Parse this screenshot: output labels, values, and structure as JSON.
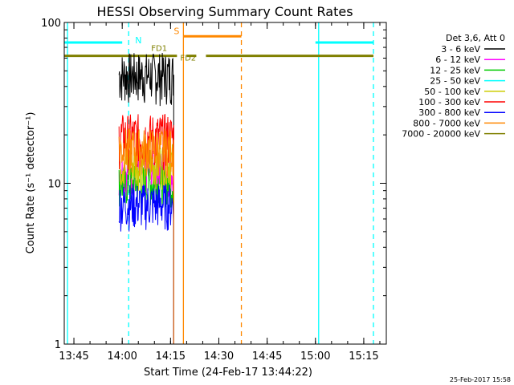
{
  "chart_data": {
    "type": "line",
    "title": "HESSI Observing Summary Count Rates",
    "xlabel": "Start Time (24-Feb-17 13:44:22)",
    "ylabel": "Count Rate (s⁻¹ detector⁻¹)",
    "y_scale": "log",
    "ylim": [
      1,
      100
    ],
    "xlim": [
      "13:42",
      "15:22"
    ],
    "x_ticks": [
      "13:45",
      "14:00",
      "14:15",
      "14:30",
      "14:45",
      "15:00",
      "15:15"
    ],
    "y_ticks": [
      "1",
      "10",
      "100"
    ],
    "date_stamp": "25-Feb-2017 15:58",
    "legend": {
      "title": "Det 3,6, Att 0",
      "position": "right",
      "entries": [
        {
          "label": "3 - 6 keV",
          "color": "#000000"
        },
        {
          "label": "6 - 12 keV",
          "color": "#ff00ff"
        },
        {
          "label": "12 - 25 keV",
          "color": "#00cc00"
        },
        {
          "label": "25 - 50 keV",
          "color": "#00ffff"
        },
        {
          "label": "50 - 100 keV",
          "color": "#cccc00"
        },
        {
          "label": "100 - 300 keV",
          "color": "#ff0000"
        },
        {
          "label": "300 - 800 keV",
          "color": "#0000ff"
        },
        {
          "label": "800 - 7000 keV",
          "color": "#ff8800"
        },
        {
          "label": "7000 - 20000 keV",
          "color": "#808000"
        }
      ]
    },
    "series": [
      {
        "name": "3 - 6 keV",
        "color": "#000000",
        "t_start": "13:59",
        "t_end": "14:16",
        "level": 50,
        "low": 30,
        "high": 65
      },
      {
        "name": "6 - 12 keV",
        "color": "#ff00ff",
        "t_start": "13:59",
        "t_end": "14:16",
        "level": 12,
        "low": 8,
        "high": 16
      },
      {
        "name": "12 - 25 keV",
        "color": "#00cc00",
        "t_start": "13:59",
        "t_end": "14:16",
        "level": 10,
        "low": 7,
        "high": 13
      },
      {
        "name": "50 - 100 keV",
        "color": "#cccc00",
        "t_start": "13:59",
        "t_end": "14:16",
        "level": 13,
        "low": 9,
        "high": 18
      },
      {
        "name": "100 - 300 keV",
        "color": "#ff0000",
        "t_start": "13:59",
        "t_end": "14:16",
        "level": 18,
        "low": 12,
        "high": 27
      },
      {
        "name": "300 - 800 keV",
        "color": "#0000ff",
        "t_start": "13:59",
        "t_end": "14:16",
        "level": 7,
        "low": 5,
        "high": 10
      },
      {
        "name": "800 - 7000 keV",
        "color": "#ff8800",
        "t_start": "13:59",
        "t_end": "14:16",
        "level": 16,
        "low": 11,
        "high": 22
      }
    ],
    "annotations": [
      {
        "label": "N",
        "color": "#00ffff",
        "level": 75,
        "segments": [
          [
            "13:42",
            "14:00"
          ],
          [
            "15:00",
            "15:18"
          ]
        ],
        "solid_lines": [
          "13:43",
          "15:01"
        ],
        "dashed_lines": [
          "14:02",
          "15:18"
        ]
      },
      {
        "label": "S",
        "color": "#ff8800",
        "level": 82,
        "segments": [
          [
            "14:19",
            "14:37"
          ]
        ],
        "solid_lines": [
          "14:19"
        ],
        "dashed_lines": [
          "14:37"
        ]
      },
      {
        "label": "FD1",
        "color": "#808000",
        "level": 62,
        "segments": [
          [
            "13:42",
            "14:17"
          ],
          [
            "14:20",
            "14:23"
          ],
          [
            "14:26",
            "15:18"
          ]
        ]
      },
      {
        "label": "FD2",
        "color": "#808000",
        "level": 62
      }
    ]
  }
}
